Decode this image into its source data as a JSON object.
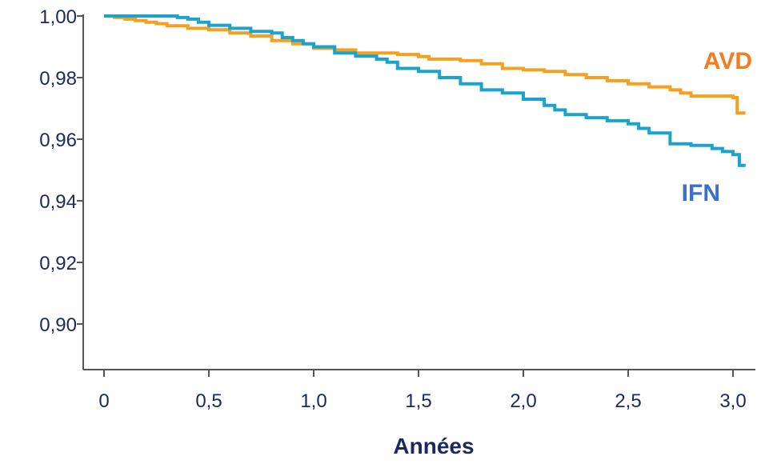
{
  "chart_data": {
    "type": "line",
    "title": "",
    "xlabel": "Années",
    "ylabel": "",
    "xlim": [
      -0.1,
      3.08
    ],
    "ylim": [
      0.886,
      1.0
    ],
    "x_ticks": [
      {
        "value": 0,
        "label": "0"
      },
      {
        "value": 0.5,
        "label": "0,5"
      },
      {
        "value": 1.0,
        "label": "1,0"
      },
      {
        "value": 1.5,
        "label": "1,5"
      },
      {
        "value": 2.0,
        "label": "2,0"
      },
      {
        "value": 2.5,
        "label": "2,5"
      },
      {
        "value": 3.0,
        "label": "3,0"
      }
    ],
    "y_ticks": [
      {
        "value": 1.0,
        "label": "1,00"
      },
      {
        "value": 0.98,
        "label": "0,98"
      },
      {
        "value": 0.96,
        "label": "0,96"
      },
      {
        "value": 0.94,
        "label": "0,94"
      },
      {
        "value": 0.92,
        "label": "0,92"
      },
      {
        "value": 0.9,
        "label": "0,90"
      }
    ],
    "grid": false,
    "legend": "inline-right",
    "series": [
      {
        "name": "AVD",
        "color": "#f5a01e",
        "label_color": "#f47b20",
        "step": true,
        "x": [
          0,
          0.05,
          0.1,
          0.15,
          0.2,
          0.25,
          0.3,
          0.4,
          0.5,
          0.6,
          0.7,
          0.8,
          0.9,
          1.0,
          1.1,
          1.2,
          1.3,
          1.4,
          1.5,
          1.55,
          1.6,
          1.7,
          1.8,
          1.9,
          2.0,
          2.1,
          2.2,
          2.3,
          2.4,
          2.5,
          2.6,
          2.7,
          2.75,
          2.8,
          2.9,
          3.0,
          3.02,
          3.06
        ],
        "y": [
          1.0,
          0.9995,
          0.999,
          0.9985,
          0.998,
          0.9975,
          0.9968,
          0.996,
          0.9955,
          0.9945,
          0.9935,
          0.992,
          0.991,
          0.9895,
          0.989,
          0.988,
          0.988,
          0.9875,
          0.9868,
          0.986,
          0.986,
          0.9855,
          0.9845,
          0.983,
          0.9825,
          0.982,
          0.981,
          0.98,
          0.979,
          0.978,
          0.977,
          0.976,
          0.975,
          0.974,
          0.974,
          0.9735,
          0.9685,
          0.9685
        ]
      },
      {
        "name": "IFN",
        "color": "#1aa3cc",
        "label_color": "#3b6fc9",
        "step": true,
        "x": [
          0,
          0.1,
          0.2,
          0.3,
          0.35,
          0.4,
          0.45,
          0.5,
          0.6,
          0.7,
          0.8,
          0.85,
          0.9,
          0.95,
          1.0,
          1.1,
          1.2,
          1.3,
          1.35,
          1.4,
          1.5,
          1.6,
          1.7,
          1.8,
          1.9,
          2.0,
          2.1,
          2.15,
          2.2,
          2.3,
          2.4,
          2.5,
          2.55,
          2.6,
          2.7,
          2.8,
          2.9,
          2.95,
          3.0,
          3.03,
          3.06
        ],
        "y": [
          1.0,
          1.0,
          1.0,
          1.0,
          0.9995,
          0.999,
          0.998,
          0.997,
          0.996,
          0.995,
          0.9945,
          0.993,
          0.992,
          0.991,
          0.99,
          0.988,
          0.987,
          0.986,
          0.985,
          0.983,
          0.982,
          0.98,
          0.978,
          0.976,
          0.975,
          0.973,
          0.971,
          0.9695,
          0.968,
          0.967,
          0.966,
          0.965,
          0.9635,
          0.962,
          0.9585,
          0.958,
          0.957,
          0.956,
          0.955,
          0.9515,
          0.9515
        ]
      }
    ]
  }
}
